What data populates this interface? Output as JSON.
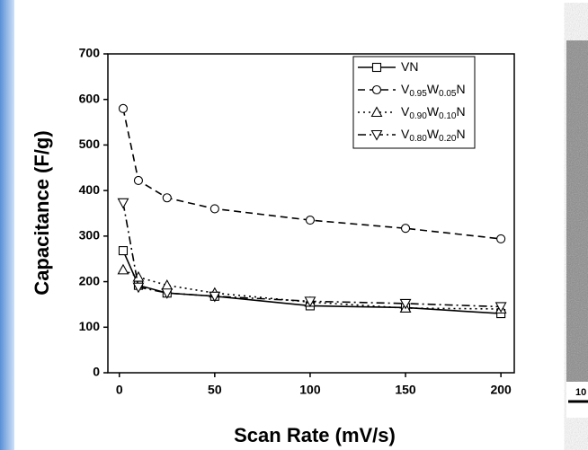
{
  "chart_data": {
    "type": "line",
    "x_label": "Scan Rate (mV/s)",
    "y_label": "Capacitance (F/g)",
    "x": [
      2,
      10,
      25,
      50,
      100,
      150,
      200
    ],
    "series": [
      {
        "name": "VN",
        "color": "#000000",
        "line_style": "solid",
        "marker": "square",
        "values": [
          268,
          192,
          175,
          168,
          147,
          143,
          130
        ]
      },
      {
        "name": "V0.95W0.05N",
        "color": "#000000",
        "line_style": "dashed",
        "marker": "circle",
        "values": [
          580,
          422,
          384,
          360,
          335,
          317,
          294
        ]
      },
      {
        "name": "V0.90W0.10N",
        "color": "#000000",
        "line_style": "dotted",
        "marker": "triangle-up",
        "values": [
          226,
          210,
          192,
          175,
          155,
          142,
          140
        ]
      },
      {
        "name": "V0.80W0.20N",
        "color": "#000000",
        "line_style": "dashdot",
        "marker": "triangle-down",
        "values": [
          373,
          188,
          175,
          168,
          157,
          152,
          145
        ]
      }
    ],
    "xlim": [
      -6,
      207
    ],
    "xticks": [
      0,
      50,
      100,
      150,
      200
    ],
    "ylim": [
      0,
      700
    ],
    "yticks": [
      0,
      100,
      200,
      300,
      400,
      500,
      600,
      700
    ],
    "legend": "upper right",
    "image_label": "10"
  }
}
